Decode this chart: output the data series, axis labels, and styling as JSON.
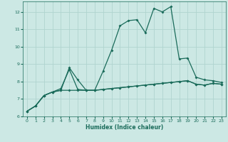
{
  "xlabel": "Humidex (Indice chaleur)",
  "bg_color": "#cce8e4",
  "grid_color": "#b0d4cf",
  "line_color": "#1a6b5a",
  "xlim": [
    -0.5,
    23.5
  ],
  "ylim": [
    6,
    12.6
  ],
  "yticks": [
    6,
    7,
    8,
    9,
    10,
    11,
    12
  ],
  "xticks": [
    0,
    1,
    2,
    3,
    4,
    5,
    6,
    7,
    8,
    9,
    10,
    11,
    12,
    13,
    14,
    15,
    16,
    17,
    18,
    19,
    20,
    21,
    22,
    23
  ],
  "line_main_x": [
    0,
    1,
    2,
    3,
    4,
    5,
    6,
    7,
    8,
    9,
    10,
    11,
    12,
    13,
    14,
    15,
    16,
    17,
    18,
    19,
    20,
    21,
    22,
    23
  ],
  "line_main_y": [
    6.3,
    6.6,
    7.2,
    7.4,
    7.5,
    8.8,
    8.1,
    7.5,
    7.5,
    8.6,
    9.8,
    11.2,
    11.5,
    11.55,
    10.8,
    12.2,
    12.0,
    12.3,
    9.3,
    9.35,
    8.25,
    8.1,
    8.05,
    7.95
  ],
  "line_flat1_x": [
    0,
    1,
    2,
    3,
    4,
    5,
    6,
    7,
    8,
    9,
    10,
    11,
    12,
    13,
    14,
    15,
    16,
    17,
    18,
    19,
    20,
    21,
    22,
    23
  ],
  "line_flat1_y": [
    6.3,
    6.6,
    7.2,
    7.4,
    7.5,
    7.5,
    7.5,
    7.5,
    7.5,
    7.55,
    7.6,
    7.65,
    7.7,
    7.75,
    7.8,
    7.85,
    7.9,
    7.95,
    8.0,
    8.05,
    7.85,
    7.8,
    7.9,
    7.85
  ],
  "line_flat2_x": [
    0,
    1,
    2,
    3,
    4,
    5,
    6,
    7,
    8,
    9,
    10,
    11,
    12,
    13,
    14,
    15,
    16,
    17,
    18,
    19,
    20,
    21,
    22,
    23
  ],
  "line_flat2_y": [
    6.3,
    6.6,
    7.2,
    7.4,
    7.6,
    8.7,
    7.55,
    7.5,
    7.5,
    7.55,
    7.6,
    7.65,
    7.7,
    7.75,
    7.8,
    7.85,
    7.9,
    7.95,
    8.0,
    8.05,
    7.85,
    7.8,
    7.9,
    7.85
  ]
}
